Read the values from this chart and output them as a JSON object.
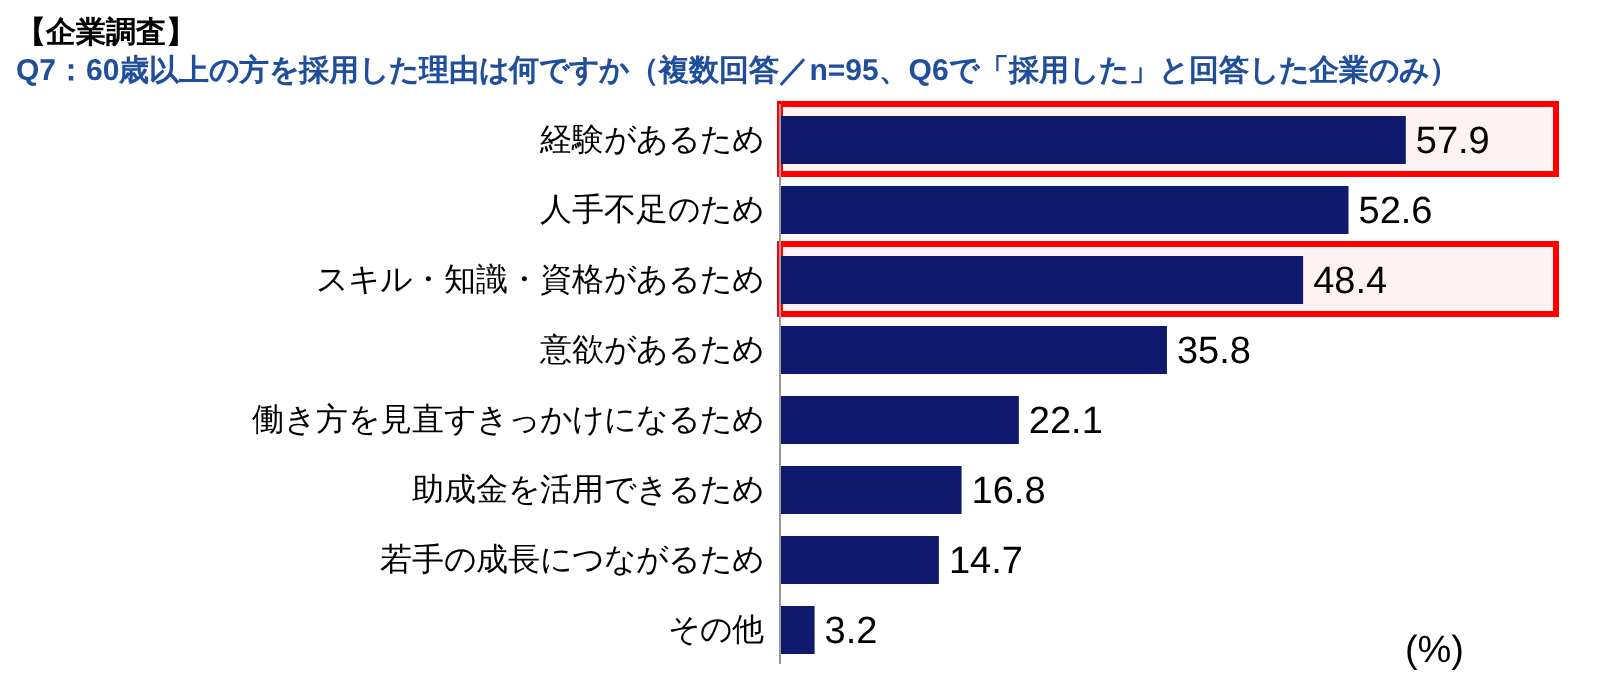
{
  "chart_data": {
    "type": "bar",
    "orientation": "horizontal",
    "title": "【企業調査】",
    "subtitle": "Q7：60歳以上の方を採用した理由は何ですか（複数回答／n=95、Q6で「採用した」と回答した企業のみ）",
    "categories": [
      "経験があるため",
      "人手不足のため",
      "スキル・知識・資格があるため",
      "意欲があるため",
      "働き方を見直すきっかけになるため",
      "助成金を活用できるため",
      "若手の成長につながるため",
      "その他"
    ],
    "values": [
      57.9,
      52.6,
      48.4,
      35.8,
      22.1,
      16.8,
      14.7,
      3.2
    ],
    "color": "#0f1a6e",
    "data_labels": true,
    "legend": false,
    "grid": false,
    "bands": [
      {
        "axis": "y",
        "from": "経験があるため",
        "to": "経験があるため",
        "color": "#ff0000"
      },
      {
        "axis": "y",
        "from": "スキル・知識・資格があるため",
        "to": "スキル・知識・資格があるため",
        "color": "#ff0000"
      }
    ],
    "annotations": [
      "(%)"
    ]
  }
}
